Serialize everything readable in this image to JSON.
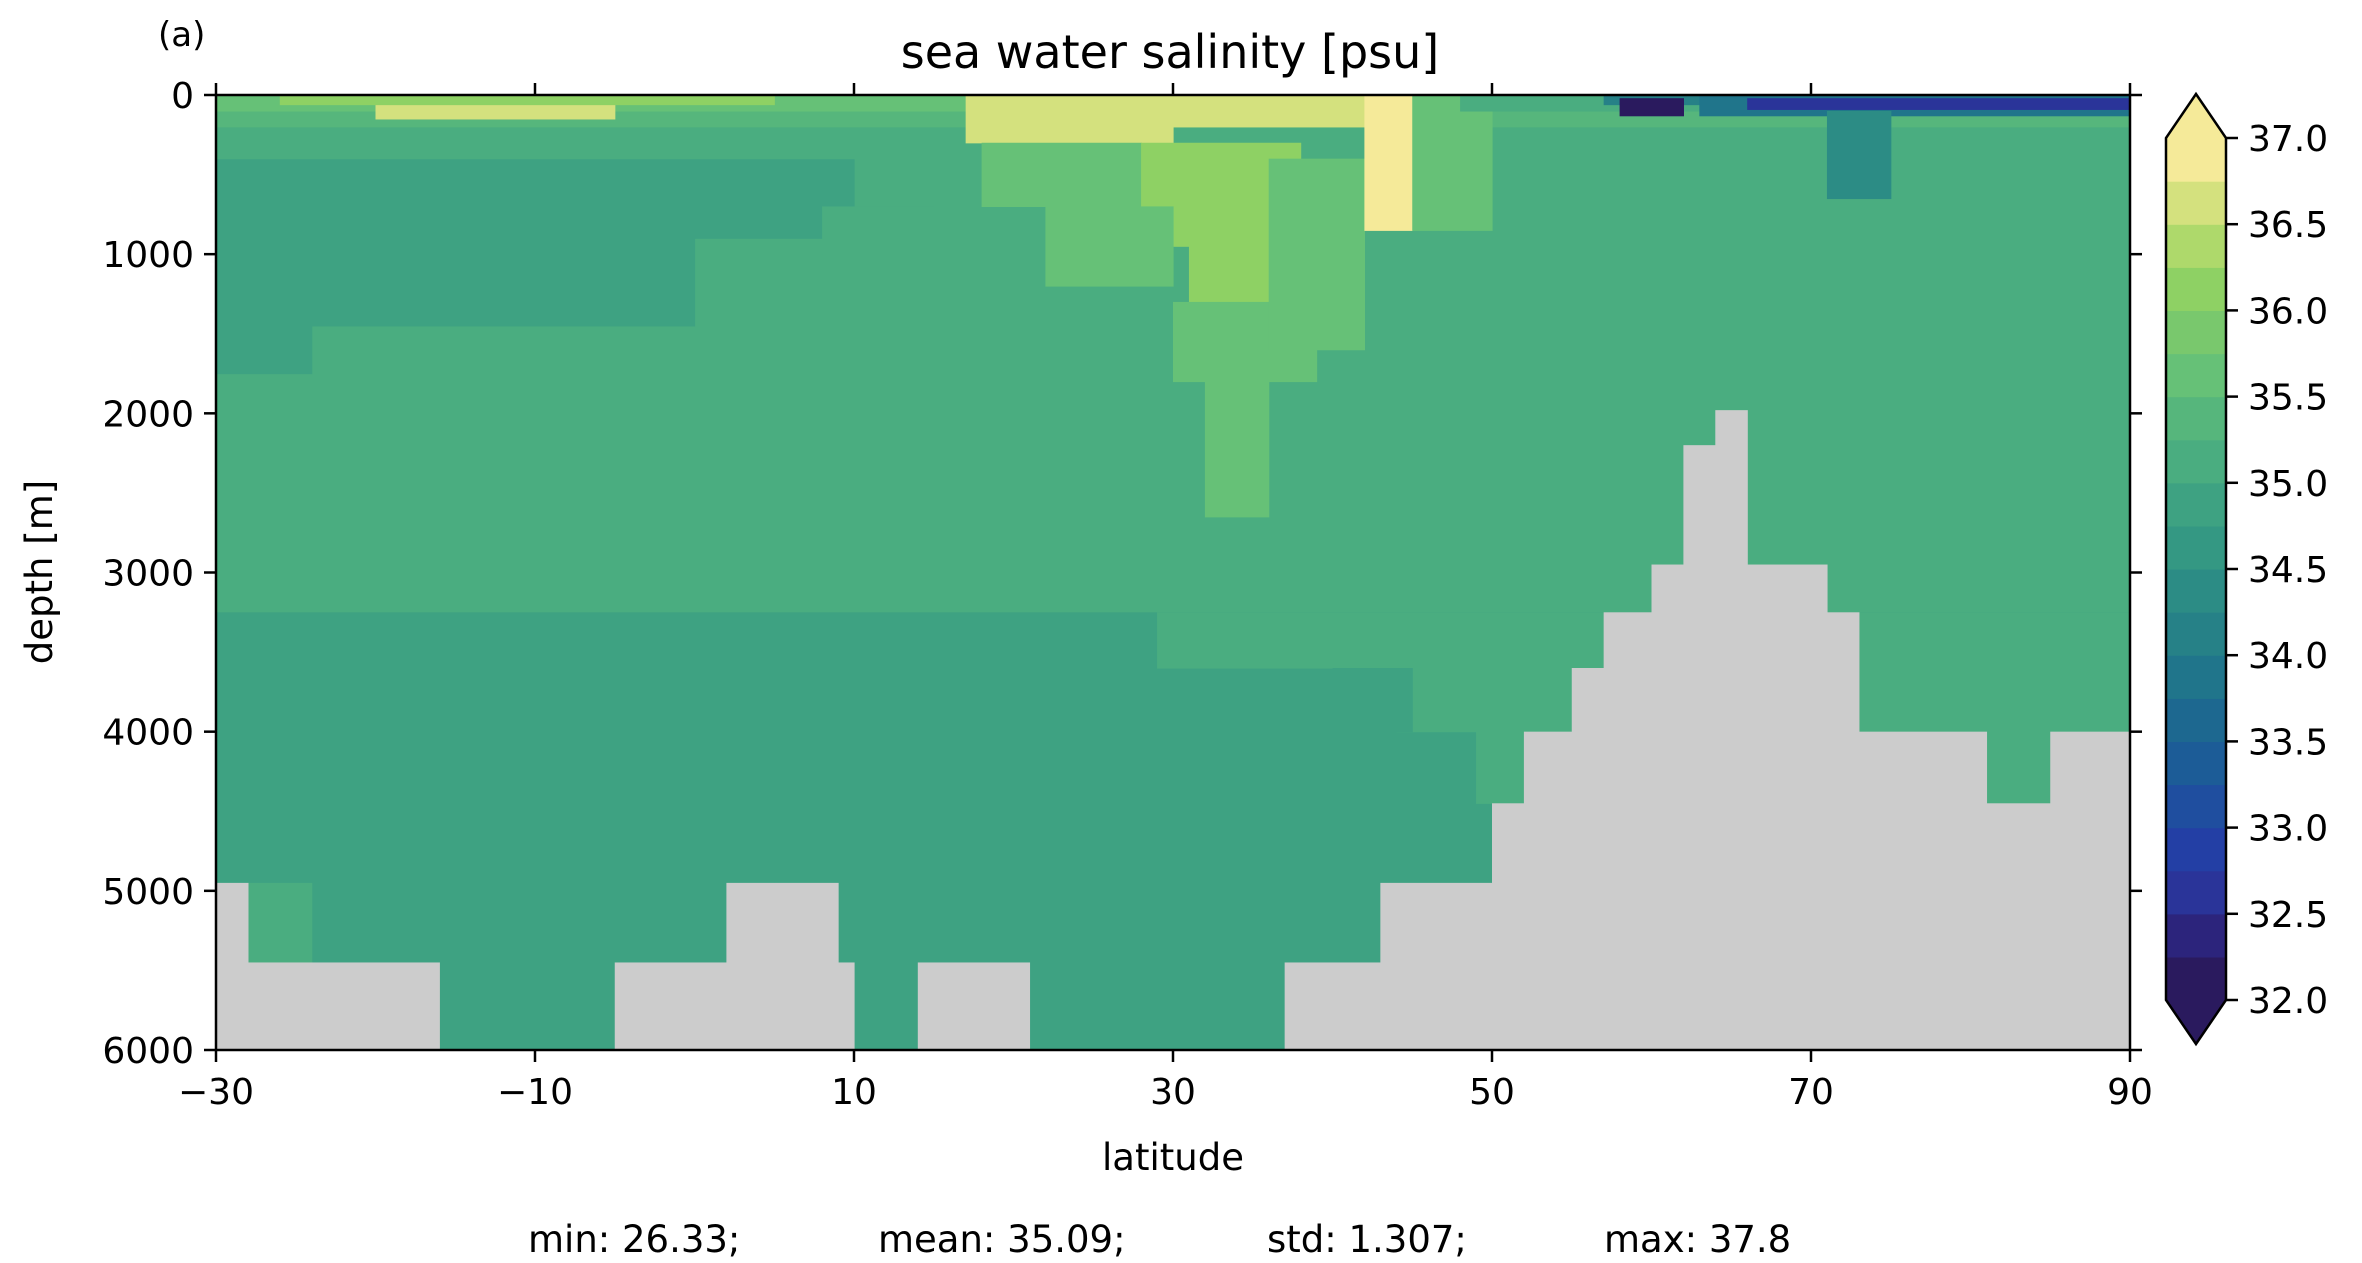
{
  "panel_label": "(a)",
  "stats": {
    "min": "min: 26.33;",
    "mean": "mean: 35.09;",
    "std": "std: 1.307;",
    "max": "max: 37.8"
  },
  "chart_data": {
    "type": "heatmap",
    "title": "sea water salinity [psu]",
    "xlabel": "latitude",
    "ylabel": "depth [m]",
    "xlim": [
      -30,
      90
    ],
    "ylim": [
      6000,
      0
    ],
    "y_inverted": true,
    "x_ticks": [
      -30,
      -10,
      10,
      30,
      50,
      70,
      90
    ],
    "x_tick_labels": [
      "−30",
      "−10",
      "10",
      "30",
      "50",
      "70",
      "90"
    ],
    "y_ticks": [
      0,
      1000,
      2000,
      3000,
      4000,
      5000,
      6000
    ],
    "y_tick_labels": [
      "0",
      "1000",
      "2000",
      "3000",
      "4000",
      "5000",
      "6000"
    ],
    "colorbar": {
      "min": 32.0,
      "max": 37.0,
      "step": 0.25,
      "extend": "both",
      "ticks": [
        32.0,
        32.5,
        33.0,
        33.5,
        34.0,
        34.5,
        35.0,
        35.5,
        36.0,
        36.5,
        37.0
      ],
      "tick_labels": [
        "32.0",
        "32.5",
        "33.0",
        "33.5",
        "34.0",
        "34.5",
        "35.0",
        "35.5",
        "36.0",
        "36.5",
        "37.0"
      ],
      "colors": [
        "#2a1a5e",
        "#2c247c",
        "#2a3499",
        "#233fa5",
        "#1f4e9f",
        "#1c5c97",
        "#1d6890",
        "#20758b",
        "#268187",
        "#2c8c85",
        "#349883",
        "#3ea282",
        "#4aad80",
        "#56b67c",
        "#66c177",
        "#79c86d",
        "#8ed164",
        "#aed96b",
        "#d4e17e",
        "#f5ea99"
      ]
    },
    "land_color": "#cccccc",
    "background_value": 35.0,
    "cells": [
      {
        "lat": [
          -30,
          90
        ],
        "depth": [
          0,
          6000
        ],
        "v": 35.05
      },
      {
        "lat": [
          -30,
          90
        ],
        "depth": [
          3250,
          6000
        ],
        "v": 34.95
      },
      {
        "lat": [
          29,
          90
        ],
        "depth": [
          3250,
          3600
        ],
        "v": 35.05
      },
      {
        "lat": [
          44,
          90
        ],
        "depth": [
          3600,
          4000
        ],
        "v": 35.05
      },
      {
        "lat": [
          49,
          90
        ],
        "depth": [
          4000,
          4450
        ],
        "v": 35.05
      },
      {
        "lat": [
          -30,
          5
        ],
        "depth": [
          4450,
          4950
        ],
        "v": 34.8
      },
      {
        "lat": [
          -30,
          -26
        ],
        "depth": [
          4000,
          4450
        ],
        "v": 34.8
      },
      {
        "lat": [
          -8.4,
          -8
        ],
        "depth": [
          4000,
          4450
        ],
        "v": 34.8
      },
      {
        "lat": [
          -5,
          -4.3
        ],
        "depth": [
          4000,
          4450
        ],
        "v": 34.8
      },
      {
        "lat": [
          -30,
          -28
        ],
        "depth": [
          4950,
          6000
        ],
        "v": 34.8
      },
      {
        "lat": [
          -24,
          3
        ],
        "depth": [
          4950,
          6000
        ],
        "v": 34.8
      },
      {
        "lat": [
          -28,
          -24
        ],
        "depth": [
          4950,
          5450
        ],
        "v": 35.1
      },
      {
        "lat": [
          -30,
          -24
        ],
        "depth": [
          500,
          1100
        ],
        "v": 34.85
      },
      {
        "lat": [
          -30,
          -24
        ],
        "depth": [
          1100,
          1750
        ],
        "v": 34.95
      },
      {
        "lat": [
          -24,
          0
        ],
        "depth": [
          900,
          1450
        ],
        "v": 34.95
      },
      {
        "lat": [
          -30,
          10
        ],
        "depth": [
          400,
          900
        ],
        "v": 34.95
      },
      {
        "lat": [
          8,
          15
        ],
        "depth": [
          700,
          1000
        ],
        "v": 35.05
      },
      {
        "lat": [
          -30,
          90
        ],
        "depth": [
          200,
          400
        ],
        "v": 35.2
      },
      {
        "lat": [
          -30,
          90
        ],
        "depth": [
          100,
          200
        ],
        "v": 35.45
      },
      {
        "lat": [
          -30,
          48
        ],
        "depth": [
          0,
          100
        ],
        "v": 35.65
      },
      {
        "lat": [
          -20,
          -5
        ],
        "depth": [
          0,
          150
        ],
        "v": 36.6
      },
      {
        "lat": [
          -26,
          5
        ],
        "depth": [
          0,
          60
        ],
        "v": 36.1
      },
      {
        "lat": [
          17,
          30
        ],
        "depth": [
          0,
          300
        ],
        "v": 36.6
      },
      {
        "lat": [
          30,
          42
        ],
        "depth": [
          0,
          200
        ],
        "v": 36.6
      },
      {
        "lat": [
          18,
          28
        ],
        "depth": [
          300,
          700
        ],
        "v": 35.7
      },
      {
        "lat": [
          28,
          38
        ],
        "depth": [
          300,
          950
        ],
        "v": 36.1
      },
      {
        "lat": [
          31,
          37
        ],
        "depth": [
          950,
          1300
        ],
        "v": 36.0
      },
      {
        "lat": [
          22,
          30
        ],
        "depth": [
          700,
          1200
        ],
        "v": 35.5
      },
      {
        "lat": [
          30,
          39
        ],
        "depth": [
          1300,
          1800
        ],
        "v": 35.6
      },
      {
        "lat": [
          32,
          36
        ],
        "depth": [
          1800,
          2650
        ],
        "v": 35.6
      },
      {
        "lat": [
          36,
          42
        ],
        "depth": [
          400,
          1600
        ],
        "v": 35.6
      },
      {
        "lat": [
          42,
          45
        ],
        "depth": [
          0,
          850
        ],
        "v": 36.9
      },
      {
        "lat": [
          45,
          50
        ],
        "depth": [
          0,
          850
        ],
        "v": 35.6
      },
      {
        "lat": [
          48,
          90
        ],
        "depth": [
          0,
          100
        ],
        "v": 35.05
      },
      {
        "lat": [
          57,
          90
        ],
        "depth": [
          0,
          60
        ],
        "v": 34.2
      },
      {
        "lat": [
          63,
          90
        ],
        "depth": [
          0,
          130
        ],
        "v": 33.9
      },
      {
        "lat": [
          58,
          62
        ],
        "depth": [
          20,
          130
        ],
        "v": 32.1
      },
      {
        "lat": [
          66,
          90
        ],
        "depth": [
          20,
          90
        ],
        "v": 32.6
      },
      {
        "lat": [
          71,
          75
        ],
        "depth": [
          100,
          650
        ],
        "v": 34.3
      },
      {
        "lat": [
          40,
          45
        ],
        "depth": [
          3600,
          4000
        ],
        "v": 34.95
      },
      {
        "lat": [
          81,
          85
        ],
        "depth": [
          4000,
          4450
        ],
        "v": 35.05
      },
      {
        "lat": [
          52,
          56
        ],
        "depth": [
          4000,
          4450
        ],
        "v": 35.05
      }
    ],
    "land": [
      {
        "lat": [
          -30,
          -28
        ],
        "depth": [
          4950,
          6000
        ]
      },
      {
        "lat": [
          -28,
          -16
        ],
        "depth": [
          5450,
          6000
        ]
      },
      {
        "lat": [
          -5,
          3
        ],
        "depth": [
          5450,
          6000
        ]
      },
      {
        "lat": [
          2,
          9
        ],
        "depth": [
          4950,
          6000
        ]
      },
      {
        "lat": [
          9,
          10
        ],
        "depth": [
          5450,
          6000
        ]
      },
      {
        "lat": [
          14,
          21
        ],
        "depth": [
          5450,
          6000
        ]
      },
      {
        "lat": [
          37,
          43
        ],
        "depth": [
          5450,
          6000
        ]
      },
      {
        "lat": [
          43,
          50
        ],
        "depth": [
          4950,
          6000
        ]
      },
      {
        "lat": [
          50,
          52
        ],
        "depth": [
          4450,
          6000
        ]
      },
      {
        "lat": [
          52,
          55
        ],
        "depth": [
          4000,
          6000
        ]
      },
      {
        "lat": [
          55,
          57
        ],
        "depth": [
          3600,
          6000
        ]
      },
      {
        "lat": [
          57,
          60
        ],
        "depth": [
          3250,
          6000
        ]
      },
      {
        "lat": [
          60,
          62
        ],
        "depth": [
          2950,
          6000
        ]
      },
      {
        "lat": [
          62,
          64
        ],
        "depth": [
          2200,
          6000
        ]
      },
      {
        "lat": [
          64,
          66
        ],
        "depth": [
          1980,
          6000
        ]
      },
      {
        "lat": [
          66,
          71
        ],
        "depth": [
          2950,
          6000
        ]
      },
      {
        "lat": [
          71,
          73
        ],
        "depth": [
          3250,
          6000
        ]
      },
      {
        "lat": [
          73,
          81
        ],
        "depth": [
          4000,
          6000
        ]
      },
      {
        "lat": [
          81,
          85
        ],
        "depth": [
          4450,
          6000
        ]
      },
      {
        "lat": [
          85,
          90
        ],
        "depth": [
          4000,
          6000
        ]
      }
    ]
  }
}
